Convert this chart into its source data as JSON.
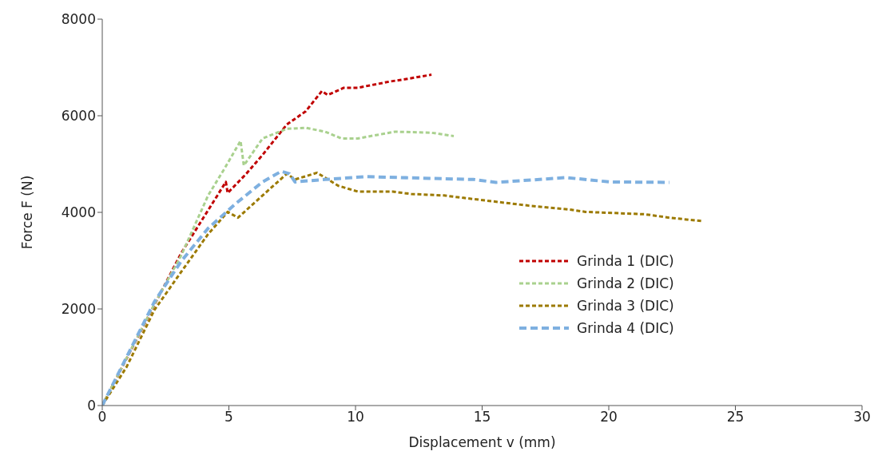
{
  "chart_data": {
    "type": "line",
    "xlabel": "Displacement v (mm)",
    "ylabel": "Force F (N)",
    "xlim": [
      0,
      30
    ],
    "xticks": [
      0,
      5,
      10,
      15,
      20,
      25,
      30
    ],
    "ylim": [
      0,
      8000
    ],
    "yticks": [
      0,
      2000,
      4000,
      6000,
      8000
    ],
    "legend": "right",
    "line_style": "dashed",
    "marker": "none",
    "series": [
      {
        "name": "Grinda 1 (DIC)",
        "color": "#c00000",
        "x": [
          0,
          3.12,
          4.08,
          4.88,
          4.95,
          5.69,
          6.33,
          7.29,
          8.03,
          8.67,
          8.9,
          9.54,
          10.09,
          11.37,
          12.0,
          13.0
        ],
        "values": [
          0,
          3160,
          3960,
          4630,
          4400,
          4800,
          5190,
          5820,
          6090,
          6510,
          6430,
          6580,
          6580,
          6710,
          6760,
          6850
        ]
      },
      {
        "name": "Grinda 2 (DIC)",
        "color": "#a9d18e",
        "x": [
          0,
          2.06,
          3.12,
          4.18,
          4.82,
          5.46,
          5.59,
          6.33,
          7.29,
          8.03,
          8.8,
          9.44,
          10.09,
          11.56,
          12.98,
          13.88
        ],
        "values": [
          0,
          2100,
          3110,
          4350,
          4900,
          5480,
          4970,
          5530,
          5730,
          5750,
          5670,
          5530,
          5530,
          5670,
          5650,
          5580
        ]
      },
      {
        "name": "Grinda 3 (DIC)",
        "color": "#9c7a00",
        "x": [
          0,
          0.96,
          2.06,
          3.12,
          4.18,
          4.95,
          5.36,
          6.33,
          7.29,
          7.61,
          8.48,
          9.32,
          10.09,
          11.47,
          12.2,
          13.49,
          14.26,
          16.83,
          18.44,
          19.08,
          21.43,
          22.39,
          23.67
        ],
        "values": [
          0,
          800,
          1980,
          2770,
          3550,
          4010,
          3890,
          4350,
          4800,
          4680,
          4820,
          4550,
          4430,
          4430,
          4380,
          4350,
          4300,
          4140,
          4060,
          4010,
          3960,
          3890,
          3820
        ]
      },
      {
        "name": "Grinda 4 (DIC)",
        "color": "#7eb0e0",
        "x": [
          0,
          2.06,
          3.12,
          4.18,
          5.27,
          6.33,
          7.07,
          7.39,
          7.61,
          8.8,
          10.41,
          14.68,
          15.55,
          18.31,
          20.04,
          22.39
        ],
        "values": [
          0,
          2150,
          2990,
          3670,
          4180,
          4630,
          4850,
          4800,
          4630,
          4680,
          4740,
          4680,
          4620,
          4720,
          4630,
          4620
        ]
      }
    ]
  }
}
